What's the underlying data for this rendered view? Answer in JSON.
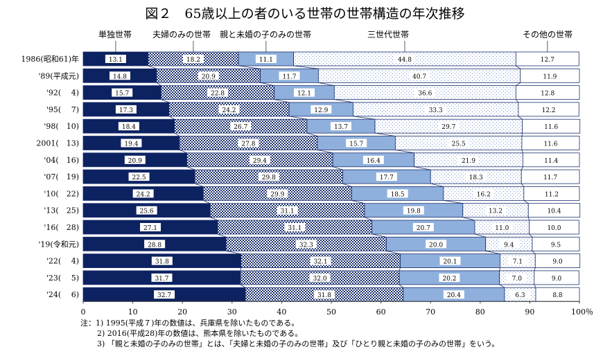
{
  "chart_data": {
    "type": "bar",
    "orientation": "horizontal",
    "stacked": true,
    "title": "図２　65歳以上の者のいる世帯の世帯構造の年次推移",
    "categories": [
      "1986(昭和61)年",
      "'89(平成元)",
      "'92(　 4)",
      "'95(　 7)",
      "'98(　10)",
      "2001(　13)",
      "'04(　16)",
      "'07(　19)",
      "'10(　22)",
      "'13(　25)",
      "'16(　28)",
      "'19(令和元)",
      "'22(　 4)",
      "'23(　 5)",
      "'24(　 6)"
    ],
    "series": [
      {
        "name": "単独世帯",
        "color": "#0d2260",
        "pattern": "solid",
        "values": [
          13.1,
          14.8,
          15.7,
          17.3,
          18.4,
          19.4,
          20.9,
          22.5,
          24.2,
          25.6,
          27.1,
          28.8,
          31.8,
          31.7,
          32.7
        ]
      },
      {
        "name": "夫婦のみの世帯",
        "color": "#1a2f6e",
        "pattern": "checker",
        "values": [
          18.2,
          20.9,
          22.8,
          24.2,
          26.7,
          27.8,
          29.4,
          29.8,
          29.9,
          31.1,
          31.1,
          32.3,
          32.1,
          32.0,
          31.8
        ]
      },
      {
        "name": "親と未婚の子のみの世帯",
        "color": "#8fb0dc",
        "pattern": "solid",
        "values": [
          11.1,
          11.7,
          12.1,
          12.9,
          13.7,
          15.7,
          16.4,
          17.7,
          18.5,
          19.8,
          20.7,
          20.0,
          20.1,
          20.2,
          20.4
        ]
      },
      {
        "name": "三世代世帯",
        "color": "#6f8fc8",
        "pattern": "dots",
        "values": [
          44.8,
          40.7,
          36.6,
          33.3,
          29.7,
          25.5,
          21.9,
          18.3,
          16.2,
          13.2,
          11.0,
          9.4,
          7.1,
          7.0,
          6.3
        ]
      },
      {
        "name": "その他の世帯",
        "color": "#ffffff",
        "pattern": "none",
        "values": [
          12.7,
          11.9,
          12.8,
          12.2,
          11.6,
          11.6,
          11.4,
          11.7,
          11.2,
          10.4,
          10.0,
          9.5,
          9.0,
          9.0,
          8.8
        ]
      }
    ],
    "xlim": [
      0,
      100
    ],
    "xticks": [
      "0",
      "10",
      "20",
      "30",
      "40",
      "50",
      "60",
      "70",
      "80",
      "90",
      "100％"
    ],
    "legend": "top",
    "notes": [
      "注：1)  1995(平成７)年の数値は、兵庫県を除いたものである。",
      "2)  2016(平成28)年の数値は、熊本県を除いたものである。",
      "3)  「親と未婚の子のみの世帯」とは、「夫婦と未婚の子のみの世帯」及び「ひとり親と未婚の子のみの世帯」をいう。"
    ]
  }
}
